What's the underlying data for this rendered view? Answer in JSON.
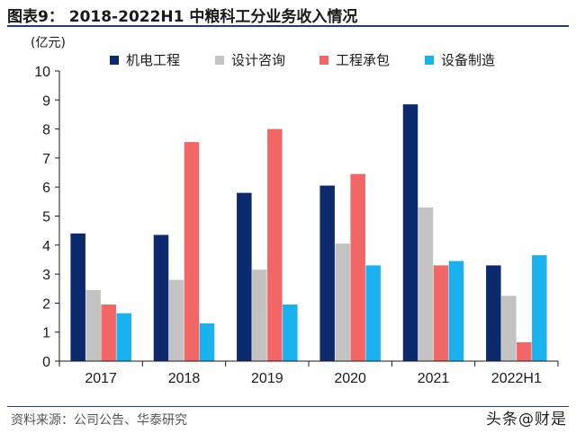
{
  "header": {
    "title": "图表9： 2018-2022H1 中粮科工分业务收入情况"
  },
  "footer": {
    "source": "资料来源：公司公告、华泰研究",
    "watermark": "头条@财是"
  },
  "chart_data": {
    "type": "bar",
    "title": "图表9： 2018-2022H1 中粮科工分业务收入情况",
    "ylabel": "(亿元)",
    "xlabel": "",
    "ylim": [
      0,
      10
    ],
    "yticks": [
      0,
      1,
      2,
      3,
      4,
      5,
      6,
      7,
      8,
      9,
      10
    ],
    "grid": false,
    "legend_position": "top",
    "categories": [
      "2017",
      "2018",
      "2019",
      "2020",
      "2021",
      "2022H1"
    ],
    "series": [
      {
        "name": "机电工程",
        "color": "#0d2a6e",
        "values": [
          4.4,
          4.35,
          5.8,
          6.05,
          8.85,
          3.3
        ]
      },
      {
        "name": "设计咨询",
        "color": "#c3c3c3",
        "values": [
          2.45,
          2.8,
          3.15,
          4.05,
          5.3,
          2.25
        ]
      },
      {
        "name": "工程承包",
        "color": "#f26666",
        "values": [
          1.95,
          7.55,
          8.0,
          6.45,
          3.3,
          0.65
        ]
      },
      {
        "name": "设备制造",
        "color": "#19b2ef",
        "values": [
          1.65,
          1.3,
          1.95,
          3.3,
          3.45,
          3.65
        ]
      }
    ]
  }
}
